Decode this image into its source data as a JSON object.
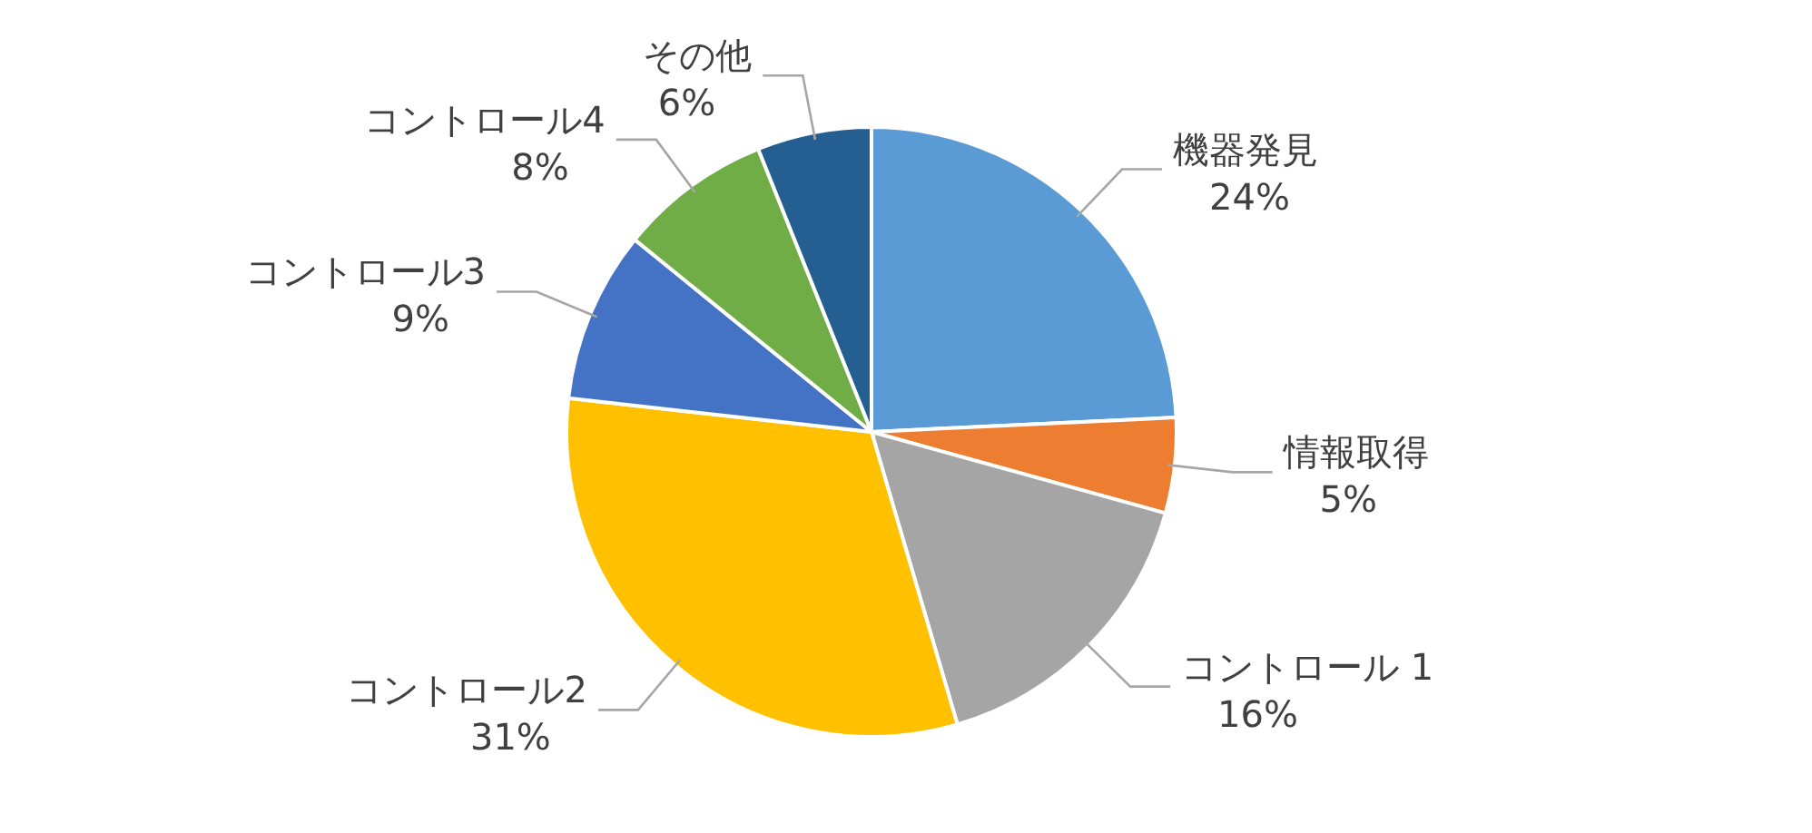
{
  "chart_data": {
    "type": "pie",
    "categories": [
      "機器発見",
      "情報取得",
      "コントロール 1",
      "コントロール2",
      "コントロール3",
      "コントロール4",
      "その他"
    ],
    "values": [
      24,
      5,
      16,
      31,
      9,
      8,
      6
    ],
    "value_labels": [
      "24%",
      "5%",
      "16%",
      "31%",
      "9%",
      "8%",
      "6%"
    ],
    "colors": [
      "#5b9bd5",
      "#ed7d31",
      "#a5a5a5",
      "#ffc000",
      "#4472c4",
      "#70ad47",
      "#255e91"
    ],
    "legend": false
  }
}
